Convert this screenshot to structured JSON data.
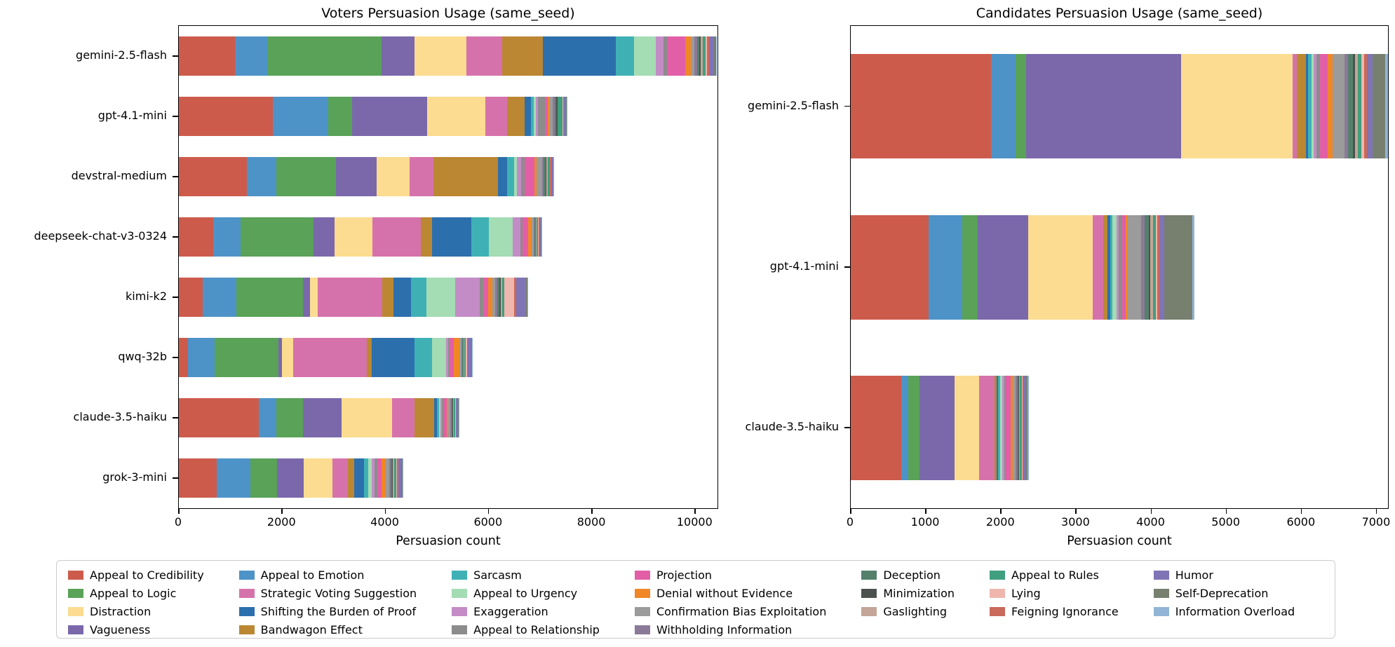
{
  "palette": {
    "Appeal to Credibility": "#cd5b4c",
    "Appeal to Emotion": "#4d93c8",
    "Appeal to Logic": "#59a257",
    "Vagueness": "#7a68ab",
    "Distraction": "#fbdc90",
    "Strategic Voting Suggestion": "#d672ab",
    "Bandwagon Effect": "#bb8732",
    "Shifting the Burden of Proof": "#2c6fad",
    "Sarcasm": "#3fb1b5",
    "Appeal to Urgency": "#a4dcb4",
    "Exaggeration": "#c38cc6",
    "Appeal to Relationship": "#8c8c8c",
    "Projection": "#e25fa7",
    "Denial without Evidence": "#f18627",
    "Confirmation Bias Exploitation": "#9b9b9b",
    "Withholding Information": "#8b7a97",
    "Deception": "#54806c",
    "Minimization": "#4b524e",
    "Gaslighting": "#c3a697",
    "Appeal to Rules": "#3f9f7e",
    "Lying": "#efb6ad",
    "Feigning Ignorance": "#c96a5c",
    "Humor": "#7f74b6",
    "Self-Deprecation": "#77806f",
    "Information Overload": "#92b5d6"
  },
  "legend_columns": [
    [
      "Appeal to Credibility",
      "Appeal to Logic",
      "Distraction",
      "Vagueness"
    ],
    [
      "Appeal to Emotion",
      "Strategic Voting Suggestion",
      "Shifting the Burden of Proof",
      "Bandwagon Effect"
    ],
    [
      "Sarcasm",
      "Appeal to Urgency",
      "Exaggeration",
      "Appeal to Relationship"
    ],
    [
      "Projection",
      "Denial without Evidence",
      "Confirmation Bias Exploitation",
      "Withholding Information"
    ],
    [
      "Deception",
      "Minimization",
      "Gaslighting"
    ],
    [
      "Appeal to Rules",
      "Lying",
      "Feigning Ignorance"
    ],
    [
      "Humor",
      "Self-Deprecation",
      "Information Overload"
    ]
  ],
  "chart_data": [
    {
      "type": "bar",
      "orientation": "horizontal",
      "stacked": true,
      "title": "Voters Persuasion Usage (same_seed)",
      "xlabel": "Persuasion count",
      "xmax": 10430,
      "xticks": [
        0,
        2000,
        4000,
        6000,
        8000,
        10000
      ],
      "categories": [
        "gemini-2.5-flash",
        "gpt-4.1-mini",
        "devstral-medium",
        "deepseek-chat-v3-0324",
        "kimi-k2",
        "qwq-32b",
        "claude-3.5-haiku",
        "grok-3-mini"
      ],
      "series": [
        {
          "name": "Appeal to Credibility",
          "values": [
            1080,
            1820,
            1320,
            670,
            460,
            170,
            1550,
            740
          ]
        },
        {
          "name": "Appeal to Emotion",
          "values": [
            650,
            1070,
            570,
            530,
            650,
            520,
            340,
            640
          ]
        },
        {
          "name": "Appeal to Logic",
          "values": [
            2200,
            460,
            1150,
            1410,
            1290,
            1240,
            520,
            520
          ]
        },
        {
          "name": "Vagueness",
          "values": [
            640,
            1460,
            790,
            400,
            140,
            60,
            740,
            520
          ]
        },
        {
          "name": "Distraction",
          "values": [
            1000,
            1120,
            640,
            740,
            150,
            220,
            980,
            550
          ]
        },
        {
          "name": "Strategic Voting Suggestion",
          "values": [
            690,
            430,
            460,
            930,
            1250,
            1430,
            430,
            310
          ]
        },
        {
          "name": "Bandwagon Effect",
          "values": [
            790,
            340,
            1250,
            220,
            220,
            90,
            380,
            120
          ]
        },
        {
          "name": "Shifting the Burden of Proof",
          "values": [
            1410,
            120,
            170,
            770,
            330,
            840,
            60,
            190
          ]
        },
        {
          "name": "Sarcasm",
          "values": [
            360,
            50,
            140,
            340,
            300,
            330,
            40,
            80
          ]
        },
        {
          "name": "Appeal to Urgency",
          "values": [
            410,
            40,
            60,
            460,
            560,
            270,
            30,
            60
          ]
        },
        {
          "name": "Exaggeration",
          "values": [
            150,
            40,
            80,
            140,
            480,
            50,
            30,
            60
          ]
        },
        {
          "name": "Appeal to Relationship",
          "values": [
            80,
            140,
            60,
            40,
            60,
            30,
            30,
            50
          ]
        },
        {
          "name": "Projection",
          "values": [
            340,
            50,
            200,
            120,
            100,
            80,
            60,
            90
          ]
        },
        {
          "name": "Denial without Evidence",
          "values": [
            120,
            30,
            40,
            60,
            80,
            100,
            30,
            80
          ]
        },
        {
          "name": "Confirmation Bias Exploitation",
          "values": [
            60,
            70,
            100,
            40,
            60,
            40,
            40,
            60
          ]
        },
        {
          "name": "Withholding Information",
          "values": [
            60,
            40,
            40,
            20,
            40,
            20,
            20,
            30
          ]
        },
        {
          "name": "Deception",
          "values": [
            40,
            30,
            30,
            20,
            40,
            20,
            20,
            30
          ]
        },
        {
          "name": "Minimization",
          "values": [
            30,
            20,
            20,
            10,
            20,
            10,
            10,
            20
          ]
        },
        {
          "name": "Gaslighting",
          "values": [
            30,
            10,
            30,
            10,
            30,
            10,
            10,
            20
          ]
        },
        {
          "name": "Appeal to Rules",
          "values": [
            60,
            90,
            30,
            30,
            50,
            30,
            30,
            40
          ]
        },
        {
          "name": "Lying",
          "values": [
            30,
            10,
            10,
            10,
            180,
            20,
            10,
            20
          ]
        },
        {
          "name": "Feigning Ignorance",
          "values": [
            40,
            20,
            20,
            10,
            40,
            20,
            10,
            20
          ]
        },
        {
          "name": "Humor",
          "values": [
            90,
            40,
            40,
            30,
            190,
            60,
            40,
            60
          ]
        },
        {
          "name": "Self-Deprecation",
          "values": [
            40,
            10,
            10,
            10,
            30,
            20,
            10,
            20
          ]
        },
        {
          "name": "Information Overload",
          "values": [
            20,
            10,
            10,
            10,
            20,
            10,
            10,
            20
          ]
        }
      ]
    },
    {
      "type": "bar",
      "orientation": "horizontal",
      "stacked": true,
      "title": "Candidates Persuasion Usage (same_seed)",
      "xlabel": "Persuasion count",
      "xmax": 7150,
      "xticks": [
        0,
        1000,
        2000,
        3000,
        4000,
        5000,
        6000,
        7000
      ],
      "categories": [
        "gemini-2.5-flash",
        "gpt-4.1-mini",
        "claude-3.5-haiku"
      ],
      "series": [
        {
          "name": "Appeal to Credibility",
          "values": [
            1870,
            1040,
            670
          ]
        },
        {
          "name": "Appeal to Emotion",
          "values": [
            320,
            440,
            95
          ]
        },
        {
          "name": "Appeal to Logic",
          "values": [
            140,
            210,
            150
          ]
        },
        {
          "name": "Vagueness",
          "values": [
            2070,
            670,
            470
          ]
        },
        {
          "name": "Distraction",
          "values": [
            1480,
            860,
            320
          ]
        },
        {
          "name": "Strategic Voting Suggestion",
          "values": [
            60,
            140,
            210
          ]
        },
        {
          "name": "Bandwagon Effect",
          "values": [
            120,
            60,
            30
          ]
        },
        {
          "name": "Shifting the Burden of Proof",
          "values": [
            30,
            30,
            20
          ]
        },
        {
          "name": "Sarcasm",
          "values": [
            40,
            30,
            20
          ]
        },
        {
          "name": "Appeal to Urgency",
          "values": [
            30,
            60,
            30
          ]
        },
        {
          "name": "Exaggeration",
          "values": [
            40,
            30,
            30
          ]
        },
        {
          "name": "Appeal to Relationship",
          "values": [
            50,
            40,
            20
          ]
        },
        {
          "name": "Projection",
          "values": [
            100,
            50,
            60
          ]
        },
        {
          "name": "Denial without Evidence",
          "values": [
            60,
            30,
            30
          ]
        },
        {
          "name": "Confirmation Bias Exploitation",
          "values": [
            160,
            180,
            40
          ]
        },
        {
          "name": "Withholding Information",
          "values": [
            50,
            40,
            20
          ]
        },
        {
          "name": "Deception",
          "values": [
            60,
            60,
            20
          ]
        },
        {
          "name": "Minimization",
          "values": [
            30,
            20,
            10
          ]
        },
        {
          "name": "Gaslighting",
          "values": [
            40,
            30,
            10
          ]
        },
        {
          "name": "Appeal to Rules",
          "values": [
            50,
            40,
            20
          ]
        },
        {
          "name": "Lying",
          "values": [
            30,
            20,
            10
          ]
        },
        {
          "name": "Feigning Ignorance",
          "values": [
            40,
            30,
            10
          ]
        },
        {
          "name": "Humor",
          "values": [
            80,
            60,
            40
          ]
        },
        {
          "name": "Self-Deprecation",
          "values": [
            160,
            380,
            20
          ]
        },
        {
          "name": "Information Overload",
          "values": [
            40,
            30,
            20
          ]
        }
      ]
    }
  ]
}
